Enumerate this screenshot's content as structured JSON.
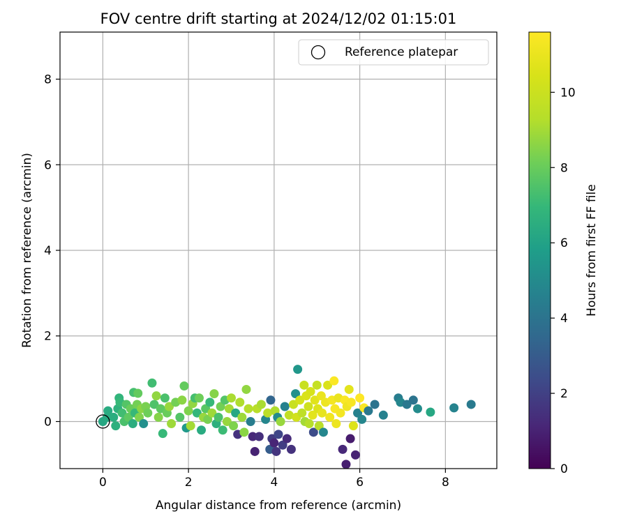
{
  "chart_data": {
    "type": "scatter",
    "title": "FOV centre drift starting at 2024/12/02 01:15:01",
    "xlabel": "Angular distance from reference (arcmin)",
    "ylabel": "Rotation from reference (arcmin)",
    "xlim": [
      -1,
      9.2
    ],
    "ylim": [
      -1.1,
      9.1
    ],
    "x_ticks": [
      0,
      2,
      4,
      6,
      8
    ],
    "y_ticks": [
      0,
      2,
      4,
      6,
      8
    ],
    "grid": true,
    "legend": {
      "placement": "top-right",
      "entries": [
        "Reference platepar"
      ]
    },
    "reference_point": {
      "x": 0,
      "y": 0
    },
    "colorbar": {
      "label": "Hours from first FF file",
      "colormap": "viridis",
      "range": [
        0,
        11.6
      ],
      "ticks": [
        0,
        2,
        4,
        6,
        8,
        10
      ]
    },
    "points": [
      [
        0.0,
        0.0,
        6.2
      ],
      [
        0.1,
        0.1,
        6.3
      ],
      [
        0.12,
        0.25,
        6.4
      ],
      [
        0.25,
        0.1,
        6.5
      ],
      [
        0.3,
        -0.1,
        6.6
      ],
      [
        0.35,
        0.3,
        6.7
      ],
      [
        0.38,
        0.55,
        6.8
      ],
      [
        0.4,
        0.45,
        7.0
      ],
      [
        0.45,
        0.2,
        7.2
      ],
      [
        0.5,
        0.0,
        7.4
      ],
      [
        0.55,
        0.4,
        7.6
      ],
      [
        0.6,
        0.1,
        7.8
      ],
      [
        0.65,
        0.3,
        8.0
      ],
      [
        0.7,
        -0.05,
        6.5
      ],
      [
        0.72,
        0.68,
        7.3
      ],
      [
        0.75,
        0.2,
        7.0
      ],
      [
        0.8,
        0.4,
        8.2
      ],
      [
        0.82,
        0.66,
        7.9
      ],
      [
        0.85,
        0.1,
        8.4
      ],
      [
        0.9,
        0.3,
        8.6
      ],
      [
        0.95,
        -0.05,
        5.2
      ],
      [
        1.0,
        0.35,
        8.3
      ],
      [
        1.05,
        0.2,
        8.1
      ],
      [
        1.15,
        0.9,
        7.2
      ],
      [
        1.2,
        0.4,
        7.5
      ],
      [
        1.25,
        0.6,
        8.7
      ],
      [
        1.3,
        0.1,
        8.5
      ],
      [
        1.35,
        0.3,
        7.8
      ],
      [
        1.4,
        -0.28,
        7.0
      ],
      [
        1.45,
        0.55,
        7.4
      ],
      [
        1.5,
        0.2,
        8.0
      ],
      [
        1.55,
        0.35,
        8.8
      ],
      [
        1.6,
        -0.05,
        8.9
      ],
      [
        1.7,
        0.45,
        8.2
      ],
      [
        1.8,
        0.1,
        7.6
      ],
      [
        1.85,
        0.5,
        8.6
      ],
      [
        1.9,
        0.83,
        7.9
      ],
      [
        1.95,
        -0.15,
        5.6
      ],
      [
        2.0,
        0.25,
        8.4
      ],
      [
        2.05,
        -0.1,
        9.0
      ],
      [
        2.1,
        0.42,
        8.7
      ],
      [
        2.15,
        0.55,
        7.3
      ],
      [
        2.2,
        0.2,
        6.9
      ],
      [
        2.25,
        0.55,
        8.1
      ],
      [
        2.3,
        -0.2,
        6.4
      ],
      [
        2.35,
        0.1,
        8.8
      ],
      [
        2.4,
        0.3,
        7.7
      ],
      [
        2.45,
        0.05,
        8.3
      ],
      [
        2.5,
        0.45,
        7.0
      ],
      [
        2.55,
        0.2,
        8.9
      ],
      [
        2.6,
        0.65,
        8.5
      ],
      [
        2.65,
        -0.05,
        6.6
      ],
      [
        2.7,
        0.1,
        7.4
      ],
      [
        2.75,
        0.35,
        8.2
      ],
      [
        2.8,
        -0.2,
        7.1
      ],
      [
        2.85,
        0.5,
        7.6
      ],
      [
        2.9,
        0.0,
        8.8
      ],
      [
        2.95,
        0.3,
        9.0
      ],
      [
        3.0,
        0.55,
        9.1
      ],
      [
        3.05,
        -0.1,
        8.4
      ],
      [
        3.1,
        0.2,
        6.2
      ],
      [
        3.15,
        -0.3,
        1.5
      ],
      [
        3.2,
        0.45,
        9.2
      ],
      [
        3.25,
        0.1,
        8.9
      ],
      [
        3.3,
        -0.25,
        8.6
      ],
      [
        3.35,
        0.75,
        8.7
      ],
      [
        3.4,
        0.3,
        9.3
      ],
      [
        3.45,
        0.0,
        4.4
      ],
      [
        3.5,
        -0.35,
        1.2
      ],
      [
        3.55,
        -0.7,
        1.0
      ],
      [
        3.6,
        0.3,
        9.4
      ],
      [
        3.65,
        -0.35,
        1.4
      ],
      [
        3.7,
        0.4,
        9.1
      ],
      [
        3.8,
        0.05,
        4.8
      ],
      [
        3.85,
        0.2,
        9.5
      ],
      [
        3.9,
        -0.65,
        3.0
      ],
      [
        3.92,
        0.5,
        3.4
      ],
      [
        3.95,
        -0.4,
        1.8
      ],
      [
        4.0,
        -0.5,
        1.1
      ],
      [
        4.02,
        0.25,
        9.2
      ],
      [
        4.05,
        -0.7,
        1.6
      ],
      [
        4.08,
        0.1,
        5.0
      ],
      [
        4.1,
        -0.3,
        2.2
      ],
      [
        4.15,
        0.0,
        8.8
      ],
      [
        4.2,
        -0.55,
        1.9
      ],
      [
        4.25,
        0.35,
        4.6
      ],
      [
        4.3,
        -0.4,
        1.3
      ],
      [
        4.35,
        0.15,
        9.7
      ],
      [
        4.4,
        -0.65,
        1.5
      ],
      [
        4.45,
        0.4,
        9.9
      ],
      [
        4.5,
        0.65,
        5.2
      ],
      [
        4.52,
        0.1,
        10.2
      ],
      [
        4.55,
        1.22,
        5.5
      ],
      [
        4.6,
        0.5,
        10.3
      ],
      [
        4.65,
        0.2,
        9.6
      ],
      [
        4.7,
        0.85,
        9.9
      ],
      [
        4.72,
        0.0,
        9.0
      ],
      [
        4.75,
        0.6,
        10.5
      ],
      [
        4.8,
        0.35,
        10.1
      ],
      [
        4.82,
        -0.05,
        9.3
      ],
      [
        4.85,
        0.7,
        10.4
      ],
      [
        4.9,
        0.15,
        10.8
      ],
      [
        4.92,
        -0.25,
        2.4
      ],
      [
        4.95,
        0.5,
        10.7
      ],
      [
        5.0,
        0.85,
        9.8
      ],
      [
        5.02,
        0.3,
        10.6
      ],
      [
        5.05,
        -0.1,
        9.4
      ],
      [
        5.1,
        0.6,
        11.0
      ],
      [
        5.12,
        0.2,
        10.9
      ],
      [
        5.15,
        -0.25,
        4.8
      ],
      [
        5.2,
        0.45,
        11.1
      ],
      [
        5.25,
        0.85,
        10.5
      ],
      [
        5.3,
        0.1,
        11.2
      ],
      [
        5.35,
        0.5,
        11.3
      ],
      [
        5.4,
        0.95,
        11.5
      ],
      [
        5.42,
        0.3,
        11.4
      ],
      [
        5.45,
        -0.05,
        11.1
      ],
      [
        5.5,
        0.55,
        11.0
      ],
      [
        5.55,
        0.2,
        11.3
      ],
      [
        5.6,
        -0.65,
        1.2
      ],
      [
        5.65,
        0.5,
        11.5
      ],
      [
        5.68,
        -1.0,
        0.9
      ],
      [
        5.7,
        0.35,
        11.2
      ],
      [
        5.75,
        0.75,
        10.8
      ],
      [
        5.78,
        -0.4,
        0.8
      ],
      [
        5.8,
        0.45,
        11.4
      ],
      [
        5.85,
        -0.1,
        10.6
      ],
      [
        5.9,
        -0.78,
        1.0
      ],
      [
        5.95,
        0.2,
        4.6
      ],
      [
        6.0,
        0.55,
        11.6
      ],
      [
        6.05,
        0.05,
        4.8
      ],
      [
        6.1,
        0.32,
        11.5
      ],
      [
        6.2,
        0.25,
        4.2
      ],
      [
        6.35,
        0.4,
        4.0
      ],
      [
        6.55,
        0.15,
        4.6
      ],
      [
        6.9,
        0.55,
        4.4
      ],
      [
        6.95,
        0.45,
        4.8
      ],
      [
        7.1,
        0.4,
        4.2
      ],
      [
        7.25,
        0.5,
        4.0
      ],
      [
        7.35,
        0.3,
        5.0
      ],
      [
        7.65,
        0.22,
        6.2
      ],
      [
        8.2,
        0.32,
        4.7
      ],
      [
        8.6,
        0.4,
        4.3
      ]
    ]
  }
}
